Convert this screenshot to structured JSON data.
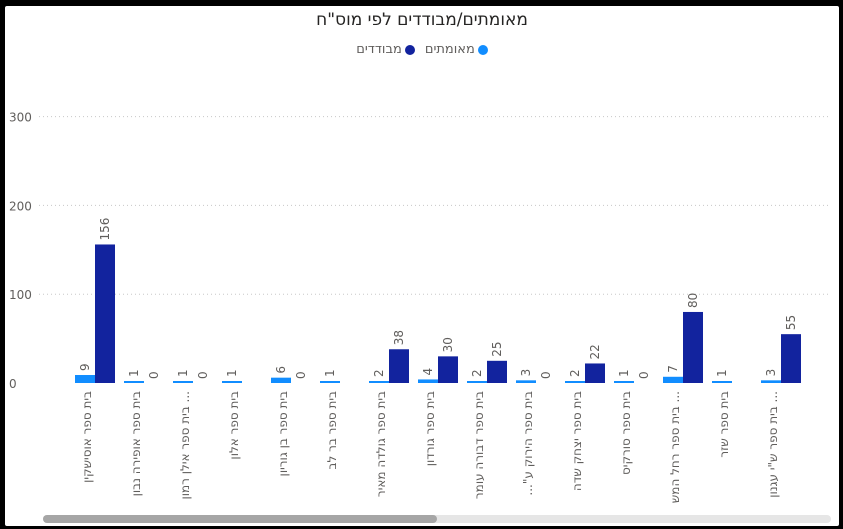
{
  "chart_data": {
    "type": "bar",
    "title": "מאומתים/מבודדים לפי מוס\"ח",
    "categories": [
      "בית ספר אוסישקין",
      "בית ספר אופירה נבון",
      "בית ספר אילן רמון ...",
      "בית ספר אלון",
      "בית ספר בן גוריון",
      "בית ספר בר לב",
      "בית ספר גולדה מאיר",
      "בית ספר גורדון",
      "בית ספר דבורה עומר",
      "...\"בית ספר הירוק ע",
      "בית ספר יצחק שדה",
      "בית ספר סורקיס",
      "בית ספר רחל המש ...",
      "בית ספר שזר",
      "בית ספר ש\"י עגנון ..."
    ],
    "series": [
      {
        "name": "מאומתים",
        "color": "#118DFF",
        "values": [
          9,
          1,
          1,
          1,
          6,
          1,
          2,
          4,
          2,
          3,
          2,
          1,
          7,
          1,
          3
        ]
      },
      {
        "name": "מבודדים",
        "color": "#12239E",
        "values": [
          156,
          0,
          0,
          null,
          0,
          null,
          38,
          30,
          25,
          0,
          22,
          0,
          80,
          null,
          55
        ]
      }
    ],
    "yticks": [
      0,
      100,
      200,
      300
    ],
    "ylim": [
      0,
      330
    ],
    "grid": true,
    "legend": "top-center"
  }
}
